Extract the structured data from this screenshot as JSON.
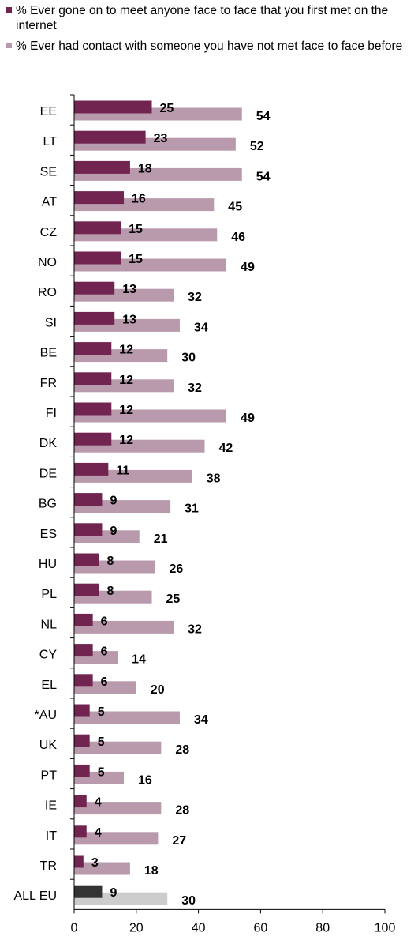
{
  "legend": [
    {
      "label": "% Ever gone on to meet anyone face to face that you first met on the internet",
      "color": "#722451"
    },
    {
      "label": "% Ever had contact with someone you have not met face to face before",
      "color": "#B89AAC"
    }
  ],
  "colors": {
    "met": "#722451",
    "contact": "#B89AAC",
    "eu_met": "#333333",
    "eu_contact": "#CCCCCC",
    "axis": "#000000"
  },
  "chart_data": {
    "type": "bar",
    "orientation": "horizontal",
    "categories": [
      "EE",
      "LT",
      "SE",
      "AT",
      "CZ",
      "NO",
      "RO",
      "SI",
      "BE",
      "FR",
      "FI",
      "DK",
      "DE",
      "BG",
      "ES",
      "HU",
      "PL",
      "NL",
      "CY",
      "EL",
      "*AU",
      "UK",
      "PT",
      "IE",
      "IT",
      "TR",
      "ALL EU"
    ],
    "series": [
      {
        "name": "% Ever gone on to meet anyone face to face that you first met on the internet",
        "values": [
          25,
          23,
          18,
          16,
          15,
          15,
          13,
          13,
          12,
          12,
          12,
          12,
          11,
          9,
          9,
          8,
          8,
          6,
          6,
          6,
          5,
          5,
          5,
          4,
          4,
          3,
          9
        ]
      },
      {
        "name": "% Ever had contact with someone you have not met face to face before",
        "values": [
          54,
          52,
          54,
          45,
          46,
          49,
          32,
          34,
          30,
          32,
          49,
          42,
          38,
          31,
          21,
          26,
          25,
          32,
          14,
          20,
          34,
          28,
          16,
          28,
          27,
          18,
          30
        ]
      }
    ],
    "xlim": [
      0,
      100
    ],
    "xticks": [
      0,
      20,
      40,
      60,
      80,
      100
    ],
    "grid": false,
    "legend_position": "top"
  }
}
